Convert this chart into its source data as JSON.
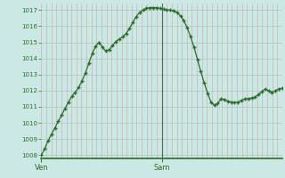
{
  "background_color": "#cce8e4",
  "line_color": "#2d6b2d",
  "marker_color": "#2d6b2d",
  "vgrid_color": "#c8a8a8",
  "hgrid_color": "#a8c8c4",
  "axis_color": "#2d6b2d",
  "separator_color": "#556655",
  "ylim": [
    1007.8,
    1017.4
  ],
  "yticks": [
    1008,
    1009,
    1010,
    1011,
    1012,
    1013,
    1014,
    1015,
    1016,
    1017
  ],
  "xtick_positions": [
    0,
    24
  ],
  "xtick_labels": [
    "Ven",
    "Sam"
  ],
  "n_vgrid": 48,
  "values": [
    1008.0,
    1008.4,
    1008.9,
    1009.3,
    1009.7,
    1010.1,
    1010.5,
    1010.9,
    1011.3,
    1011.65,
    1011.9,
    1012.2,
    1012.6,
    1013.1,
    1013.7,
    1014.3,
    1014.75,
    1015.0,
    1014.7,
    1014.45,
    1014.55,
    1014.8,
    1015.05,
    1015.2,
    1015.35,
    1015.55,
    1015.85,
    1016.25,
    1016.6,
    1016.85,
    1017.0,
    1017.1,
    1017.15,
    1017.15,
    1017.15,
    1017.1,
    1017.05,
    1017.0,
    1017.0,
    1016.95,
    1016.85,
    1016.65,
    1016.35,
    1015.9,
    1015.35,
    1014.7,
    1013.95,
    1013.2,
    1012.5,
    1011.85,
    1011.3,
    1011.1,
    1011.2,
    1011.5,
    1011.45,
    1011.35,
    1011.3,
    1011.25,
    1011.3,
    1011.4,
    1011.5,
    1011.5,
    1011.55,
    1011.6,
    1011.75,
    1011.95,
    1012.1,
    1012.0,
    1011.9,
    1012.0,
    1012.1,
    1012.15
  ]
}
